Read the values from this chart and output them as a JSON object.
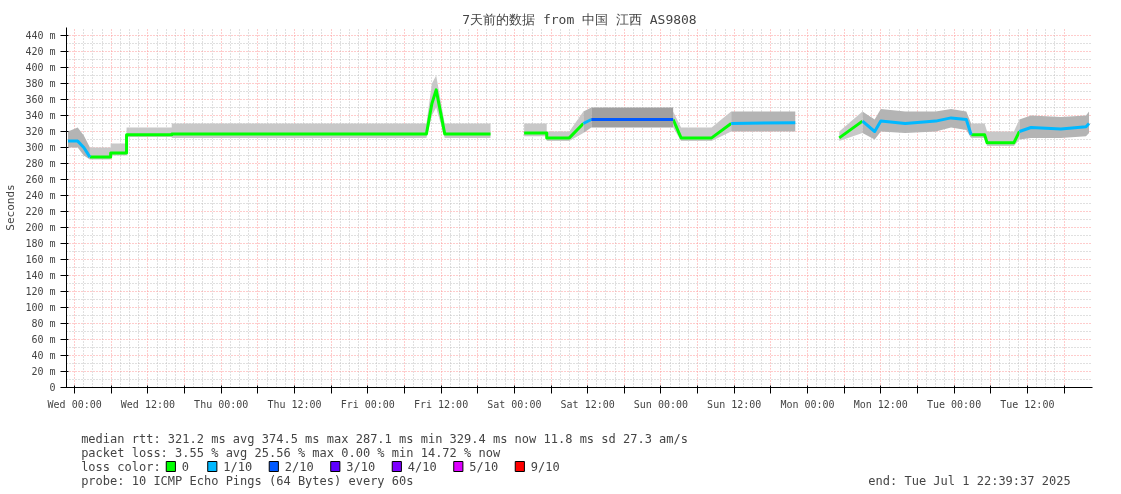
{
  "chart_data": {
    "type": "line",
    "title": "7天前的数据 from 中国 江西 AS9808",
    "ylabel": "Seconds",
    "legend_title": "loss color:",
    "legend": "bottom",
    "grid": true,
    "line_style": "solid",
    "marker": "none",
    "xlim": [
      "2025-06-24T22:40",
      "2025-07-01T22:40"
    ],
    "ylim": [
      0,
      450
    ],
    "xticks": [
      {
        "value": "2025-06-25T00:00",
        "label": "Wed 00:00"
      },
      {
        "value": "2025-06-25T06:00",
        "label": null
      },
      {
        "value": "2025-06-25T12:00",
        "label": "Wed 12:00"
      },
      {
        "value": "2025-06-25T18:00",
        "label": null
      },
      {
        "value": "2025-06-26T00:00",
        "label": "Thu 00:00"
      },
      {
        "value": "2025-06-26T06:00",
        "label": null
      },
      {
        "value": "2025-06-26T12:00",
        "label": "Thu 12:00"
      },
      {
        "value": "2025-06-26T18:00",
        "label": null
      },
      {
        "value": "2025-06-27T00:00",
        "label": "Fri 00:00"
      },
      {
        "value": "2025-06-27T06:00",
        "label": null
      },
      {
        "value": "2025-06-27T12:00",
        "label": "Fri 12:00"
      },
      {
        "value": "2025-06-27T18:00",
        "label": null
      },
      {
        "value": "2025-06-28T00:00",
        "label": "Sat 00:00"
      },
      {
        "value": "2025-06-28T06:00",
        "label": null
      },
      {
        "value": "2025-06-28T12:00",
        "label": "Sat 12:00"
      },
      {
        "value": "2025-06-28T18:00",
        "label": null
      },
      {
        "value": "2025-06-29T00:00",
        "label": "Sun 00:00"
      },
      {
        "value": "2025-06-29T06:00",
        "label": null
      },
      {
        "value": "2025-06-29T12:00",
        "label": "Sun 12:00"
      },
      {
        "value": "2025-06-29T18:00",
        "label": null
      },
      {
        "value": "2025-06-30T00:00",
        "label": "Mon 00:00"
      },
      {
        "value": "2025-06-30T06:00",
        "label": null
      },
      {
        "value": "2025-06-30T12:00",
        "label": "Mon 12:00"
      },
      {
        "value": "2025-06-30T18:00",
        "label": null
      },
      {
        "value": "2025-07-01T00:00",
        "label": "Tue 00:00"
      },
      {
        "value": "2025-07-01T06:00",
        "label": null
      },
      {
        "value": "2025-07-01T12:00",
        "label": "Tue 12:00"
      },
      {
        "value": "2025-07-01T18:00",
        "label": null
      }
    ],
    "yticks": [
      0,
      {
        "value": 20,
        "label": "20 m"
      },
      {
        "value": 40,
        "label": "40 m"
      },
      {
        "value": 60,
        "label": "60 m"
      },
      {
        "value": 80,
        "label": "80 m"
      },
      {
        "value": 100,
        "label": "100 m"
      },
      {
        "value": 120,
        "label": "120 m"
      },
      {
        "value": 140,
        "label": "140 m"
      },
      {
        "value": 160,
        "label": "160 m"
      },
      {
        "value": 180,
        "label": "180 m"
      },
      {
        "value": 200,
        "label": "200 m"
      },
      {
        "value": 220,
        "label": "220 m"
      },
      {
        "value": 240,
        "label": "240 m"
      },
      {
        "value": 260,
        "label": "260 m"
      },
      {
        "value": 280,
        "label": "280 m"
      },
      {
        "value": 300,
        "label": "300 m"
      },
      {
        "value": 320,
        "label": "320 m"
      },
      {
        "value": 340,
        "label": "340 m"
      },
      {
        "value": 360,
        "label": "360 m"
      },
      {
        "value": 380,
        "label": "380 m"
      },
      {
        "value": 400,
        "label": "400 m"
      },
      {
        "value": 420,
        "label": "420 m"
      },
      {
        "value": 440,
        "label": "440 m"
      }
    ],
    "series": [
      {
        "name": "0",
        "color": "#00ff00",
        "x": [
          "2025-06-25T02:30",
          "2025-06-25T05:54",
          "2025-06-25T05:54",
          "2025-06-25T08:30",
          "2025-06-25T08:30",
          "2025-06-25T15:54",
          "2025-06-25T15:54",
          "2025-06-27T09:36",
          "2025-06-27T10:30",
          "2025-06-27T11:12",
          "2025-06-27T12:36",
          "2025-06-27T20:06",
          null,
          "2025-06-28T01:36",
          "2025-06-28T05:18",
          "2025-06-28T05:18",
          "2025-06-28T09:00",
          "2025-06-28T11:18",
          null,
          "2025-06-29T02:00",
          "2025-06-29T03:18",
          "2025-06-29T08:18",
          "2025-06-29T11:30",
          null,
          "2025-06-30T05:12",
          "2025-06-30T09:00",
          null,
          "2025-07-01T02:48",
          "2025-07-01T05:00",
          "2025-07-01T05:24",
          "2025-07-01T09:48",
          "2025-07-01T10:42"
        ],
        "values": [
          288,
          288,
          293,
          293,
          316,
          316,
          317,
          317,
          355,
          372,
          317,
          317,
          null,
          318,
          318,
          312,
          312,
          330,
          null,
          335,
          312,
          312,
          330,
          null,
          312,
          333,
          null,
          316,
          316,
          306,
          306,
          320
        ],
        "lower": [
          285,
          285,
          290,
          290,
          313,
          313,
          312,
          312,
          340,
          350,
          312,
          312,
          null,
          314,
          314,
          308,
          308,
          318,
          null,
          325,
          308,
          308,
          320,
          null,
          308,
          318,
          null,
          312,
          312,
          302,
          302,
          310
        ],
        "upper": [
          300,
          300,
          305,
          305,
          325,
          325,
          330,
          330,
          380,
          390,
          330,
          330,
          null,
          330,
          330,
          320,
          320,
          345,
          null,
          345,
          325,
          325,
          345,
          null,
          320,
          345,
          null,
          330,
          330,
          320,
          320,
          335
        ]
      },
      {
        "name": "1/10",
        "color": "#00b8ff",
        "x": [
          "2025-06-24T22:54",
          "2025-06-25T00:30",
          "2025-06-25T01:30",
          "2025-06-25T02:30",
          null,
          "2025-06-28T11:18",
          "2025-06-28T12:36",
          null,
          "2025-06-29T11:30",
          "2025-06-29T22:00",
          null,
          "2025-06-30T09:00",
          "2025-06-30T11:00",
          "2025-06-30T12:00",
          "2025-06-30T16:00",
          "2025-06-30T21:00",
          "2025-06-30T23:30",
          "2025-07-01T02:00",
          "2025-07-01T02:48",
          null,
          "2025-07-01T10:42",
          "2025-07-01T12:36",
          "2025-07-01T17:30",
          "2025-07-01T21:36",
          "2025-07-01T22:06"
        ],
        "values": [
          308,
          308,
          300,
          288,
          null,
          330,
          335,
          null,
          330,
          331,
          null,
          333,
          320,
          333,
          330,
          333,
          337,
          335,
          316,
          null,
          320,
          325,
          323,
          326,
          330
        ],
        "lower": [
          300,
          300,
          290,
          285,
          null,
          318,
          325,
          null,
          320,
          320,
          null,
          318,
          310,
          320,
          318,
          320,
          325,
          322,
          312,
          null,
          310,
          312,
          312,
          314,
          318
        ],
        "upper": [
          320,
          325,
          315,
          300,
          null,
          345,
          350,
          null,
          345,
          345,
          null,
          345,
          335,
          348,
          345,
          345,
          348,
          345,
          330,
          null,
          335,
          340,
          338,
          340,
          345
        ]
      },
      {
        "name": "2/10",
        "color": "#0059ff",
        "x": [
          "2025-06-28T12:36",
          "2025-06-28T18:00",
          "2025-06-28T23:00",
          "2025-06-29T02:00"
        ],
        "values": [
          335,
          335,
          335,
          335
        ],
        "lower": [
          325,
          325,
          325,
          325
        ],
        "upper": [
          350,
          350,
          350,
          350
        ]
      },
      {
        "name": "3/10",
        "color": "#5e00ff"
      },
      {
        "name": "4/10",
        "color": "#7e00ff"
      },
      {
        "name": "5/10",
        "color": "#dd00ff"
      },
      {
        "name": "9/10",
        "color": "#ff0000"
      }
    ],
    "annotations": [
      "median rtt:  321.2 ms avg  374.5 ms max  287.1 ms min  329.4 ms now  11.8 ms sd  27.3   am/s",
      "packet loss: 3.55 % avg  25.56 % max  0.00 % min  14.72 % now",
      "probe:       10 ICMP Echo Pings (64 Bytes) every 60s",
      "end: Tue Jul  1 22:39:37 2025"
    ]
  }
}
